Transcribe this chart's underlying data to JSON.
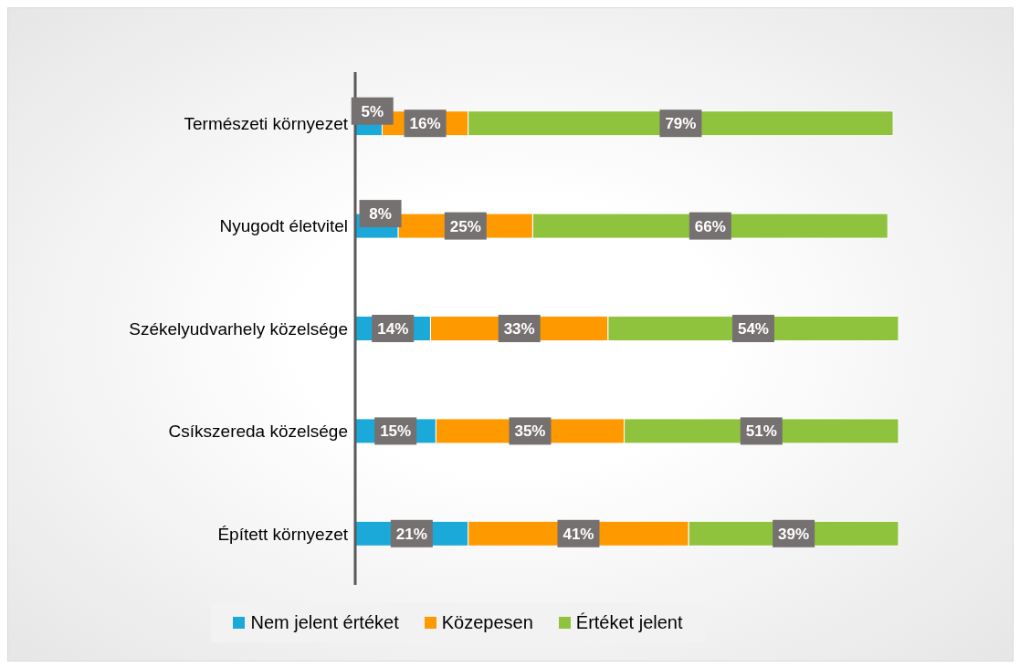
{
  "chart_data": {
    "type": "bar",
    "orientation": "horizontal",
    "stacked": true,
    "categories": [
      "Természeti környezet",
      "Nyugodt életvitel",
      "Székelyudvarhely közelsége",
      "Csíkszereda közelsége",
      "Épített környezet"
    ],
    "series": [
      {
        "name": "Nem jelent értéket",
        "color": "#1aa9d8",
        "values": [
          5,
          8,
          14,
          15,
          21
        ],
        "value_labels": [
          "5%",
          "8%",
          "14%",
          "15%",
          "21%"
        ]
      },
      {
        "name": "Közepesen",
        "color": "#ff9900",
        "values": [
          16,
          25,
          33,
          35,
          41
        ],
        "value_labels": [
          "16%",
          "25%",
          "33%",
          "35%",
          "41%"
        ]
      },
      {
        "name": "Értéket jelent",
        "color": "#8fc23d",
        "values": [
          79,
          66,
          54,
          51,
          39
        ],
        "value_labels": [
          "79%",
          "66%",
          "54%",
          "51%",
          "39%"
        ]
      }
    ],
    "legend": "bottom",
    "grid": false
  }
}
